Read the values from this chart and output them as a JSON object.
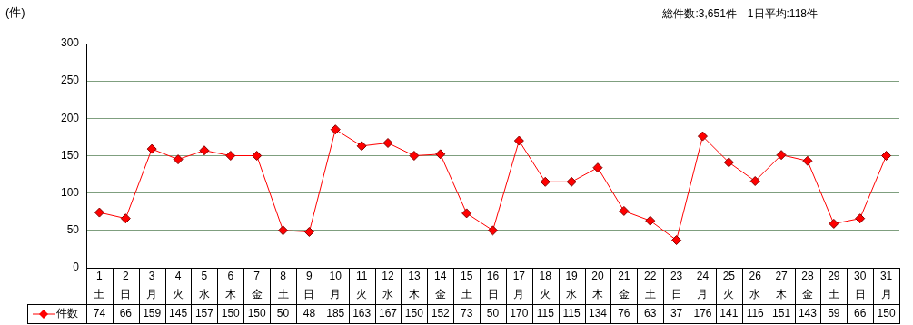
{
  "chart_data": {
    "type": "line",
    "ylabel": "(件)",
    "annotations": [
      "総件数:3,651件　1日平均:118件"
    ],
    "categories": [
      "1\n土",
      "2\n日",
      "3\n月",
      "4\n火",
      "5\n水",
      "6\n木",
      "7\n金",
      "8\n土",
      "9\n日",
      "10\n月",
      "11\n火",
      "12\n水",
      "13\n木",
      "14\n金",
      "15\n土",
      "16\n日",
      "17\n月",
      "18\n火",
      "19\n水",
      "20\n木",
      "21\n金",
      "22\n土",
      "23\n日",
      "24\n月",
      "25\n火",
      "26\n水",
      "27\n木",
      "28\n金",
      "29\n土",
      "30\n日",
      "31\n月"
    ],
    "series": [
      {
        "name": "件数",
        "color": "#ff0000",
        "values": [
          74,
          66,
          159,
          145,
          157,
          150,
          150,
          50,
          48,
          185,
          163,
          167,
          150,
          152,
          73,
          50,
          170,
          115,
          115,
          134,
          76,
          63,
          37,
          176,
          141,
          116,
          151,
          143,
          59,
          66,
          150
        ]
      }
    ],
    "ylim": [
      0,
      300
    ],
    "yticks": [
      0,
      50,
      100,
      150,
      200,
      250,
      300
    ],
    "grid": "y",
    "legend": "bottom",
    "marker": "diamond",
    "line_style": "solid",
    "data_labels": true
  }
}
